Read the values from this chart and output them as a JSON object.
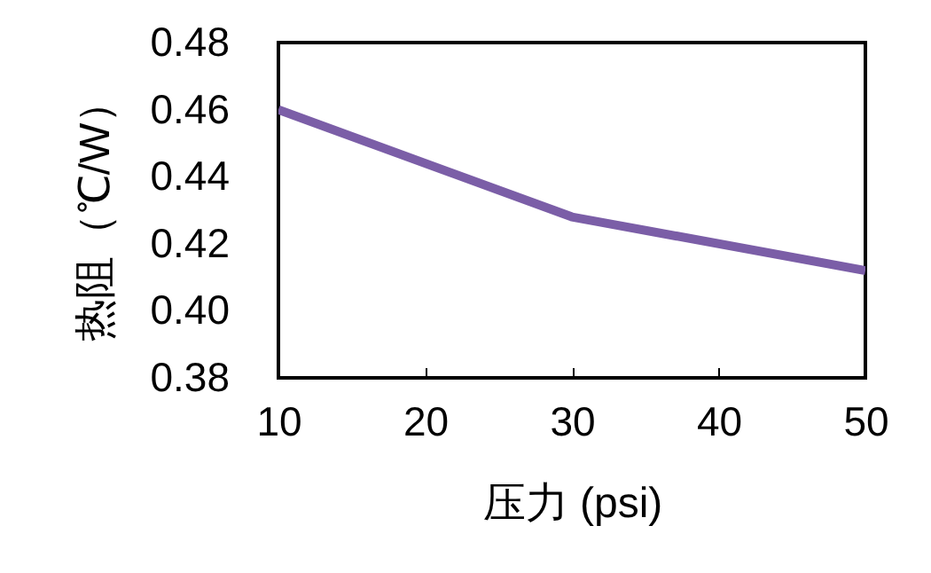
{
  "chart_data": {
    "type": "line",
    "xlabel": "压力 (psi)",
    "ylabel": "热阻（℃/W）",
    "x": [
      10,
      30,
      50
    ],
    "series": [
      {
        "color": "#7b5ea7",
        "values": [
          0.46,
          0.428,
          0.412
        ]
      }
    ],
    "xlim": [
      10,
      50
    ],
    "xticks": [
      10,
      20,
      30,
      40,
      50
    ],
    "ylim": [
      0.38,
      0.48
    ],
    "yticks": [
      {
        "value": 0.38,
        "label": "0.38"
      },
      {
        "value": 0.4,
        "label": "0.40"
      },
      {
        "value": 0.42,
        "label": "0.42"
      },
      {
        "value": 0.44,
        "label": "0.44"
      },
      {
        "value": 0.46,
        "label": "0.46"
      },
      {
        "value": 0.48,
        "label": "0.48"
      }
    ],
    "grid": false,
    "marker": "none",
    "line_style": "solid"
  }
}
